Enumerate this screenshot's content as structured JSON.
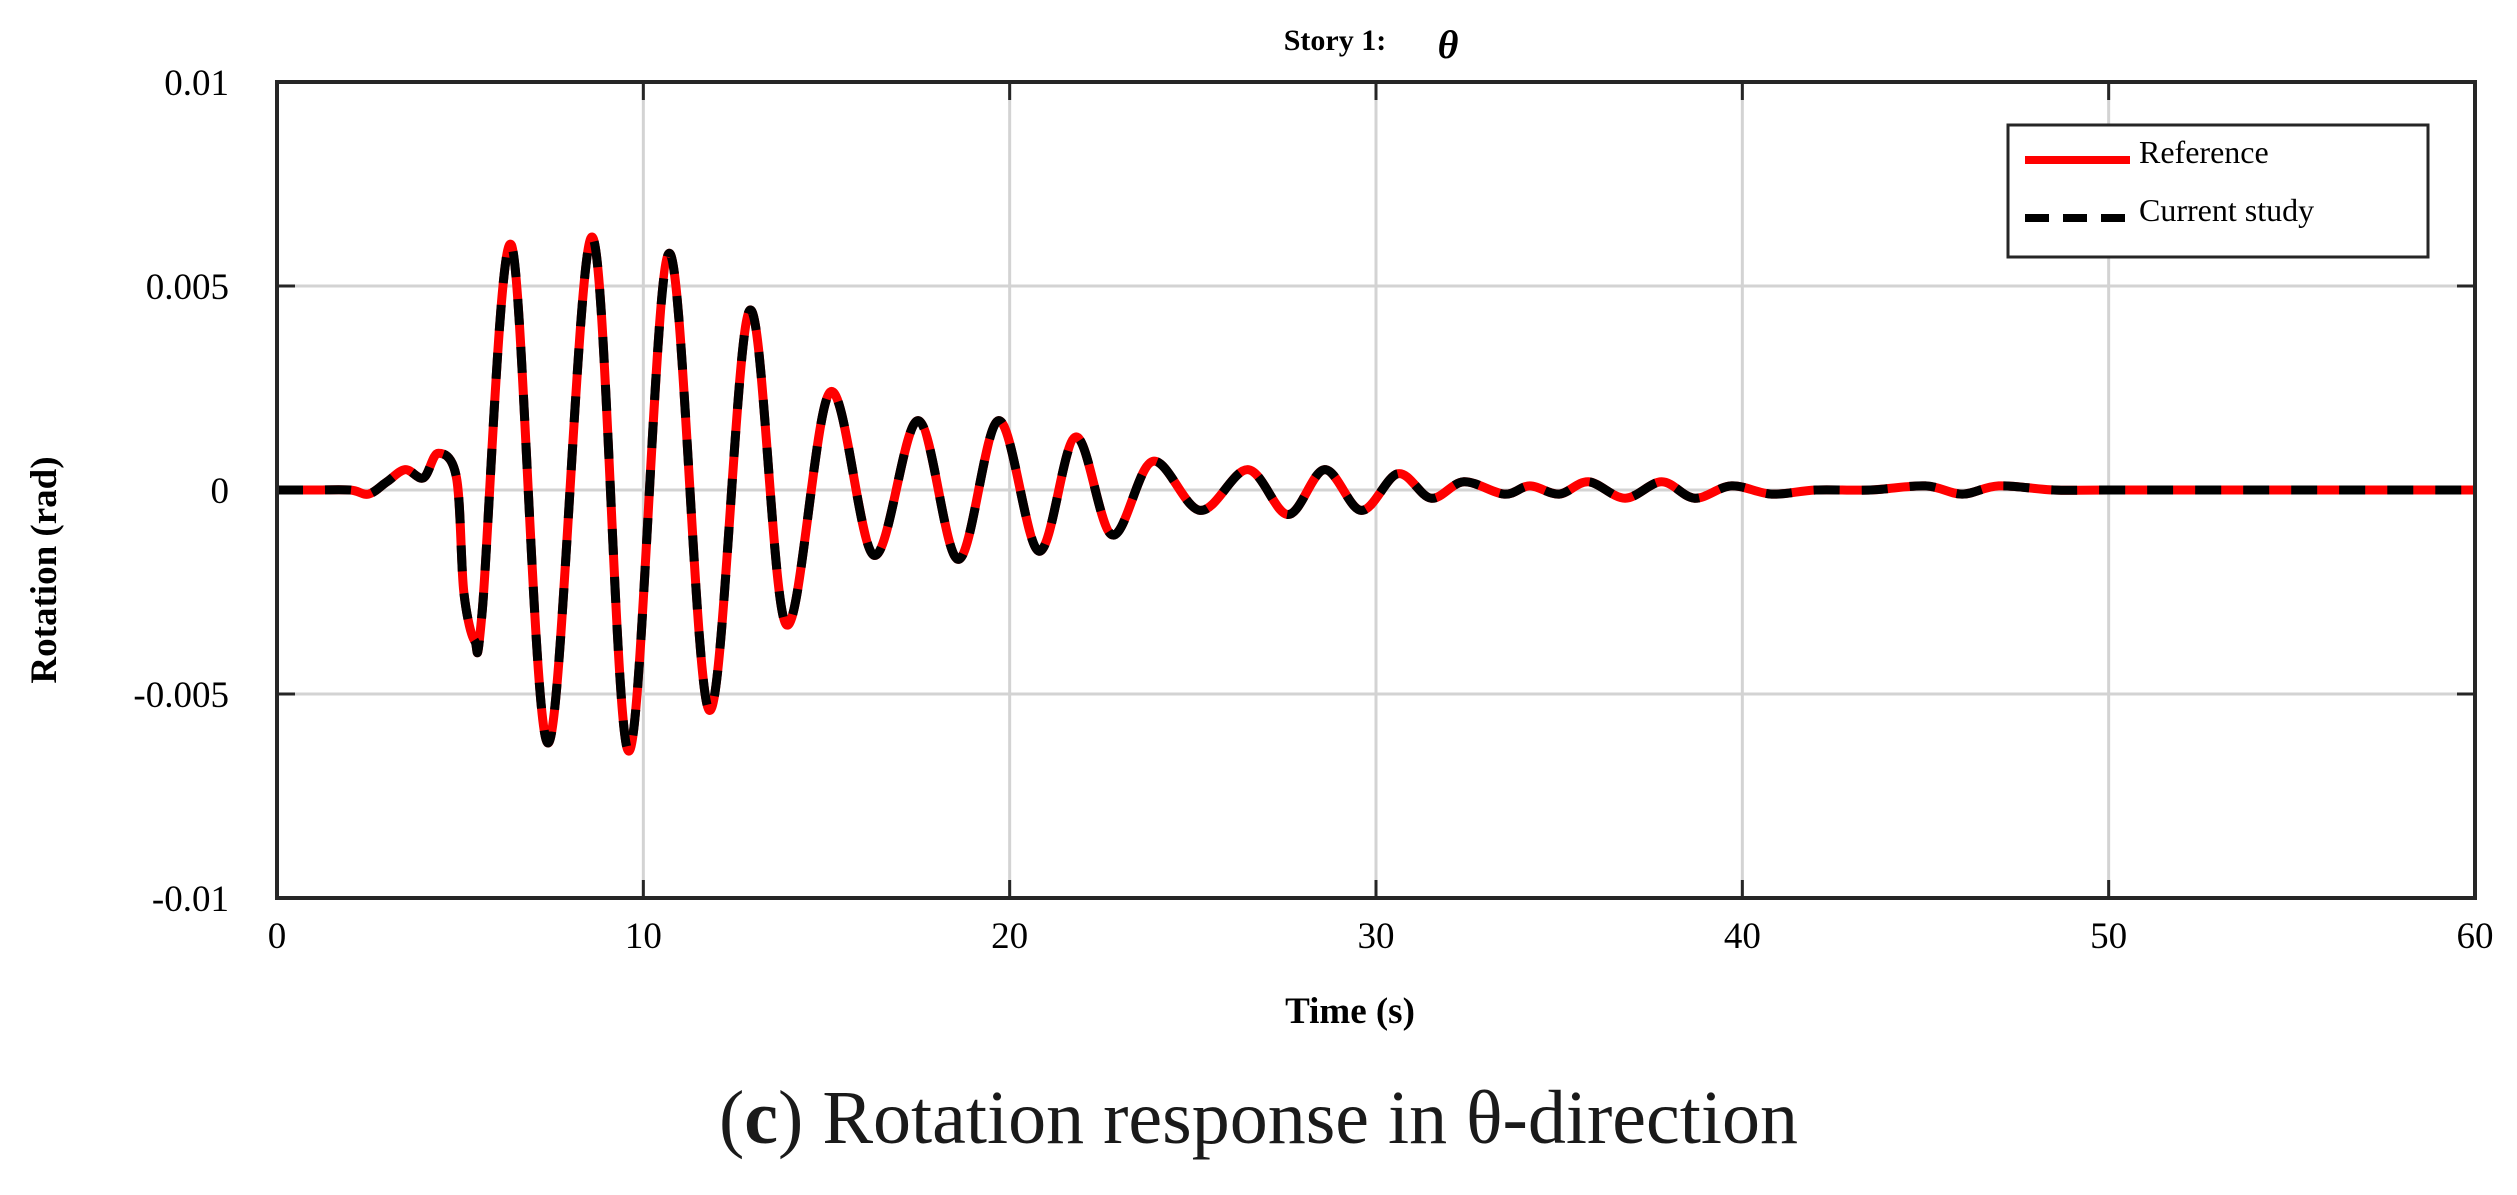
{
  "chart_data": {
    "type": "line",
    "title": "Story 1:",
    "title_symbol": "θ",
    "xlabel": "Time (s)",
    "ylabel": "Rotation (rad)",
    "xlim": [
      0,
      60
    ],
    "ylim": [
      -0.01,
      0.01
    ],
    "x_ticks": [
      0,
      10,
      20,
      30,
      40,
      50,
      60
    ],
    "x_tick_labels": [
      "0",
      "10",
      "20",
      "30",
      "40",
      "50",
      "60"
    ],
    "y_ticks": [
      0.01,
      0.005,
      0,
      -0.005,
      -0.01
    ],
    "y_tick_labels": [
      "0.01",
      "0.005",
      "0",
      "-0.005",
      "-0.01"
    ],
    "grid": true,
    "legend_position": "top-right",
    "series": [
      {
        "name": "Reference",
        "color": "#ff0000",
        "style": "solid"
      },
      {
        "name": "Current study",
        "color": "#000000",
        "style": "dashed"
      }
    ],
    "x": [
      0,
      1,
      2,
      2.5,
      3,
      3.5,
      4,
      4.4,
      4.9,
      5.1,
      5.4,
      5.6,
      6.4,
      7.4,
      8.6,
      9.6,
      10.7,
      11.8,
      12.9,
      13.9,
      15.1,
      16.3,
      17.5,
      18.6,
      19.7,
      20.8,
      21.8,
      22.8,
      23.9,
      25.2,
      26.5,
      27.6,
      28.6,
      29.6,
      30.6,
      31.5,
      32.4,
      33.5,
      34.2,
      35,
      35.8,
      36.8,
      37.8,
      38.7,
      39.7,
      40.8,
      42,
      43.5,
      45,
      46,
      47,
      48.5,
      50,
      55,
      60
    ],
    "values": [
      0,
      0,
      0,
      -0.0001,
      0.0002,
      0.0005,
      0.0003,
      0.0009,
      0.0003,
      -0.0025,
      -0.0037,
      -0.003,
      0.006,
      -0.0062,
      0.0062,
      -0.0064,
      0.0058,
      -0.0054,
      0.0044,
      -0.0033,
      0.0024,
      -0.0016,
      0.0017,
      -0.0017,
      0.0017,
      -0.0015,
      0.0013,
      -0.0011,
      0.0007,
      -0.0005,
      0.0005,
      -0.0006,
      0.0005,
      -0.0005,
      0.0004,
      -0.0002,
      0.0002,
      -0.0001,
      0.0001,
      -0.0001,
      0.0002,
      -0.0002,
      0.0002,
      -0.0002,
      0.0001,
      -0.0001,
      0,
      0,
      0.0001,
      -0.0001,
      0.0001,
      0,
      0,
      0,
      0
    ]
  },
  "caption": {
    "letter": "c",
    "text": "Rotation response in θ-direction"
  }
}
